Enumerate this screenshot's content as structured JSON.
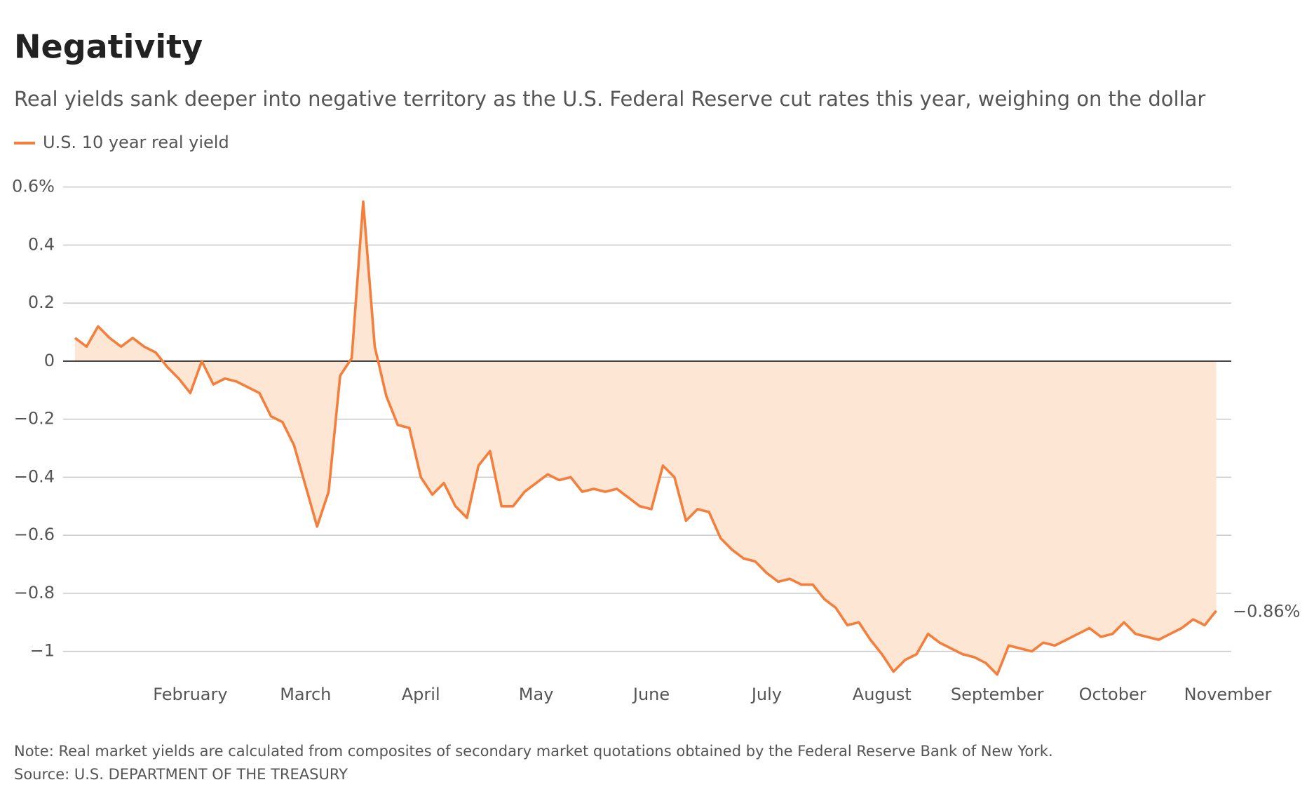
{
  "chart_data": {
    "type": "line",
    "title": "Negativity",
    "subtitle": "Real yields sank deeper into negative territory as the U.S. Federal Reserve cut rates this year, weighing on the dollar",
    "categories": [
      null,
      null,
      null,
      null,
      null,
      null,
      null,
      null,
      null,
      null,
      "February",
      null,
      null,
      null,
      null,
      null,
      null,
      null,
      null,
      null,
      "March",
      null,
      null,
      null,
      null,
      null,
      null,
      null,
      null,
      null,
      "April",
      null,
      null,
      null,
      null,
      null,
      null,
      null,
      null,
      null,
      "May",
      null,
      null,
      null,
      null,
      null,
      null,
      null,
      null,
      null,
      "June",
      null,
      null,
      null,
      null,
      null,
      null,
      null,
      null,
      null,
      "July",
      null,
      null,
      null,
      null,
      null,
      null,
      null,
      null,
      null,
      "August",
      null,
      null,
      null,
      null,
      null,
      null,
      null,
      null,
      null,
      "September",
      null,
      null,
      null,
      null,
      null,
      null,
      null,
      null,
      null,
      "October",
      null,
      null,
      null,
      null,
      null,
      null,
      null,
      null,
      null,
      "November"
    ],
    "series": [
      {
        "name": "U.S. 10 year real yield",
        "color": "#f47e3b",
        "fill": "#fde6d3",
        "values": [
          0.08,
          0.05,
          0.12,
          0.08,
          0.05,
          0.08,
          0.05,
          0.03,
          -0.02,
          -0.06,
          -0.11,
          0.0,
          -0.08,
          -0.06,
          -0.07,
          -0.09,
          -0.11,
          -0.19,
          -0.21,
          -0.29,
          -0.43,
          -0.57,
          -0.45,
          -0.05,
          0.01,
          0.55,
          0.05,
          -0.12,
          -0.22,
          -0.23,
          -0.4,
          -0.46,
          -0.42,
          -0.5,
          -0.54,
          -0.36,
          -0.31,
          -0.5,
          -0.5,
          -0.45,
          -0.42,
          -0.39,
          -0.41,
          -0.4,
          -0.45,
          -0.44,
          -0.45,
          -0.44,
          -0.47,
          -0.5,
          -0.51,
          -0.36,
          -0.4,
          -0.55,
          -0.51,
          -0.52,
          -0.61,
          -0.65,
          -0.68,
          -0.69,
          -0.73,
          -0.76,
          -0.75,
          -0.77,
          -0.77,
          -0.82,
          -0.85,
          -0.91,
          -0.9,
          -0.96,
          -1.01,
          -1.07,
          -1.03,
          -1.01,
          -0.94,
          -0.97,
          -0.99,
          -1.01,
          -1.02,
          -1.04,
          -1.08,
          -0.98,
          -0.99,
          -1.0,
          -0.97,
          -0.98,
          -0.96,
          -0.94,
          -0.92,
          -0.95,
          -0.94,
          -0.9,
          -0.94,
          -0.95,
          -0.96,
          -0.94,
          -0.92,
          -0.89,
          -0.91,
          -0.86,
          null
        ]
      }
    ],
    "annotation": "−0.86%",
    "ylim": [
      -1.1,
      0.65
    ],
    "yticks": [
      {
        "value": 0.6,
        "label": "0.6%"
      },
      0.4,
      0.2,
      0,
      {
        "value": -0.2,
        "label": "−0.2"
      },
      {
        "value": -0.4,
        "label": "−0.4"
      },
      {
        "value": -0.6,
        "label": "−0.6"
      },
      {
        "value": -0.8,
        "label": "−0.8"
      },
      {
        "value": -1,
        "label": "−1"
      }
    ],
    "grid": true,
    "note": "Note: Real market yields are calculated from composites of secondary market quotations obtained by the Federal Reserve Bank of New York.",
    "source": "Source: U.S. DEPARTMENT OF THE TREASURY"
  }
}
